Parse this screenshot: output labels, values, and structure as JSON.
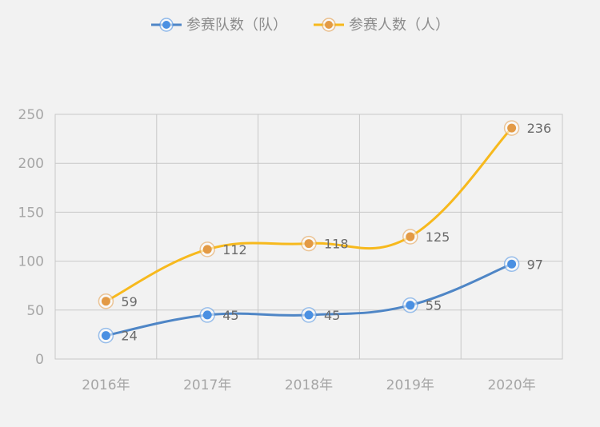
{
  "chart_data": {
    "type": "line",
    "categories": [
      "2016年",
      "2017年",
      "2018年",
      "2019年",
      "2020年"
    ],
    "series": [
      {
        "name": "参赛队数（队）",
        "values": [
          24,
          45,
          45,
          55,
          97
        ],
        "color": "#4f86c6",
        "marker_fill": "#4a90e2"
      },
      {
        "name": "参赛人数（人）",
        "values": [
          59,
          112,
          118,
          125,
          236
        ],
        "color": "#f7b91d",
        "marker_fill": "#e39a45"
      }
    ],
    "y_ticks": [
      "0",
      "50",
      "100",
      "150",
      "200",
      "250"
    ],
    "ylim": [
      0,
      250
    ],
    "grid": true,
    "legend_position": "top-center",
    "title": "",
    "xlabel": "",
    "ylabel": ""
  }
}
